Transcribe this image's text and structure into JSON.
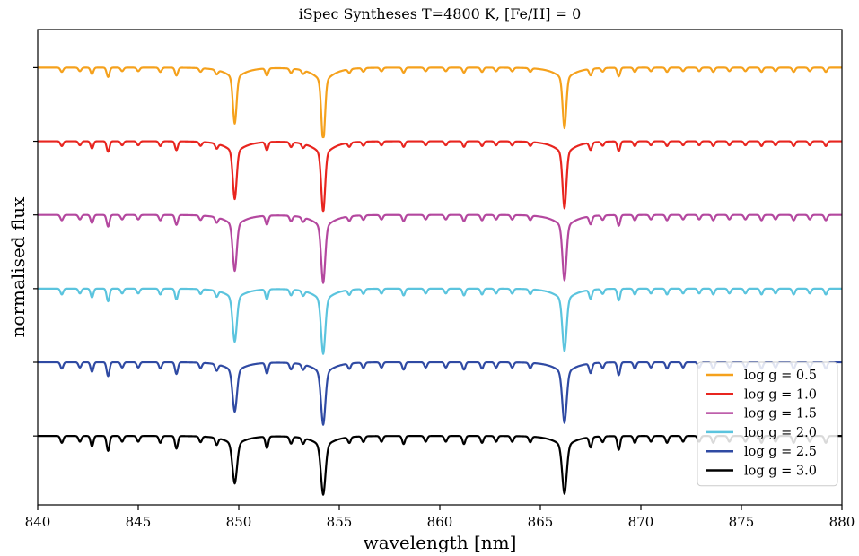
{
  "chart_data": {
    "type": "line",
    "title": "iSpec Syntheses T=4800 K, [Fe/H] = 0",
    "xlabel": "wavelength [nm]",
    "ylabel": "normalised flux",
    "xlim": [
      840,
      880
    ],
    "x_ticks": [
      840,
      845,
      850,
      855,
      860,
      865,
      870,
      875,
      880
    ],
    "legend_placement": "lower-right",
    "grid": false,
    "y_tick_labels_shown": false,
    "series": [
      {
        "name": "log g = 0.5",
        "color": "#f5a11c",
        "strong_lines": [
          {
            "center": 849.8,
            "depth": 0.6
          },
          {
            "center": 854.2,
            "depth": 0.8
          },
          {
            "center": 866.2,
            "depth": 0.65
          }
        ]
      },
      {
        "name": "log g = 1.0",
        "color": "#e8251f",
        "strong_lines": [
          {
            "center": 849.8,
            "depth": 0.62
          },
          {
            "center": 854.2,
            "depth": 0.76
          },
          {
            "center": 866.2,
            "depth": 0.72
          }
        ]
      },
      {
        "name": "log g = 1.5",
        "color": "#b4489f",
        "strong_lines": [
          {
            "center": 849.8,
            "depth": 0.6
          },
          {
            "center": 854.2,
            "depth": 0.73
          },
          {
            "center": 866.2,
            "depth": 0.7
          }
        ]
      },
      {
        "name": "log g = 2.0",
        "color": "#5bc4de",
        "strong_lines": [
          {
            "center": 849.8,
            "depth": 0.57
          },
          {
            "center": 854.2,
            "depth": 0.7
          },
          {
            "center": 866.2,
            "depth": 0.67
          }
        ]
      },
      {
        "name": "log g = 2.5",
        "color": "#2f4aa3",
        "strong_lines": [
          {
            "center": 849.8,
            "depth": 0.53
          },
          {
            "center": 854.2,
            "depth": 0.67
          },
          {
            "center": 866.2,
            "depth": 0.65
          }
        ]
      },
      {
        "name": "log g = 3.0",
        "color": "#000000",
        "strong_lines": [
          {
            "center": 849.8,
            "depth": 0.51
          },
          {
            "center": 854.2,
            "depth": 0.63
          },
          {
            "center": 866.2,
            "depth": 0.62
          }
        ]
      }
    ]
  }
}
